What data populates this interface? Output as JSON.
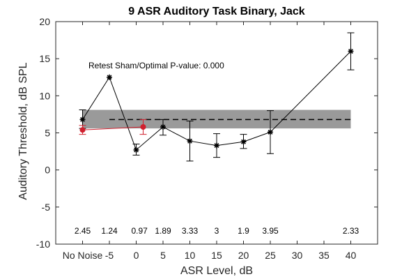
{
  "chart_data": {
    "type": "line",
    "title": "9 ASR Auditory Task Binary, Jack",
    "xlabel": "ASR Level, dB",
    "ylabel": "Auditory Threshold, dB SPL",
    "ylim": [
      -10,
      20
    ],
    "yticks": [
      -10,
      -5,
      0,
      5,
      10,
      15,
      20
    ],
    "xticks": [
      {
        "pos": -10,
        "label": "No Noise"
      },
      {
        "pos": -5,
        "label": "-5"
      },
      {
        "pos": 0,
        "label": "0"
      },
      {
        "pos": 5,
        "label": "5"
      },
      {
        "pos": 10,
        "label": "10"
      },
      {
        "pos": 15,
        "label": "15"
      },
      {
        "pos": 20,
        "label": "20"
      },
      {
        "pos": 25,
        "label": "25"
      },
      {
        "pos": 30,
        "label": "30"
      },
      {
        "pos": 35,
        "label": "35"
      },
      {
        "pos": 40,
        "label": "40"
      }
    ],
    "xlim": [
      -15,
      45
    ],
    "annotation": "Retest Sham/Optimal P-value: 0.000",
    "band": {
      "y_low": 5.6,
      "y_high": 8.1,
      "x_start": -10,
      "x_end": 40,
      "color": "#9a9a9a"
    },
    "reference_line": {
      "y": 6.8,
      "x_start": -5,
      "x_end": 40,
      "style": "dashed",
      "color": "#000000"
    },
    "series": [
      {
        "color": "#000000",
        "marker": "asterisk",
        "points": [
          {
            "x": -10,
            "y": 6.8,
            "low": 5.6,
            "high": 8.1
          },
          {
            "x": -5,
            "y": 12.5,
            "low": 12.5,
            "high": 12.5
          },
          {
            "x": 0,
            "y": 2.7,
            "low": 2.0,
            "high": 3.5
          },
          {
            "x": 5,
            "y": 5.8,
            "low": 4.7,
            "high": 6.8
          },
          {
            "x": 10,
            "y": 3.9,
            "low": 1.2,
            "high": 6.6
          },
          {
            "x": 15,
            "y": 3.3,
            "low": 1.7,
            "high": 4.9
          },
          {
            "x": 20,
            "y": 3.8,
            "low": 2.9,
            "high": 4.8
          },
          {
            "x": 25,
            "y": 5.1,
            "low": 2.2,
            "high": 8.0
          },
          {
            "x": 40,
            "y": 16.0,
            "low": 13.5,
            "high": 18.5
          }
        ]
      },
      {
        "color": "#d0202e",
        "marker": "circle",
        "points": [
          {
            "x": -10,
            "y": 5.4,
            "low": 4.8,
            "high": 6.0
          },
          {
            "x": 1.3,
            "y": 5.8,
            "low": 4.8,
            "high": 6.8
          }
        ]
      }
    ],
    "n_labels": [
      {
        "x": -10,
        "text": "2.45"
      },
      {
        "x": -5,
        "text": "1.24"
      },
      {
        "x": 0.6,
        "text": "0.97"
      },
      {
        "x": 5,
        "text": "1.89"
      },
      {
        "x": 10,
        "text": "3.33"
      },
      {
        "x": 15,
        "text": "3"
      },
      {
        "x": 20,
        "text": "1.9"
      },
      {
        "x": 25,
        "text": "3.95"
      },
      {
        "x": 40,
        "text": "2.33"
      }
    ],
    "n_labels_y": -8.2,
    "grid": false
  }
}
